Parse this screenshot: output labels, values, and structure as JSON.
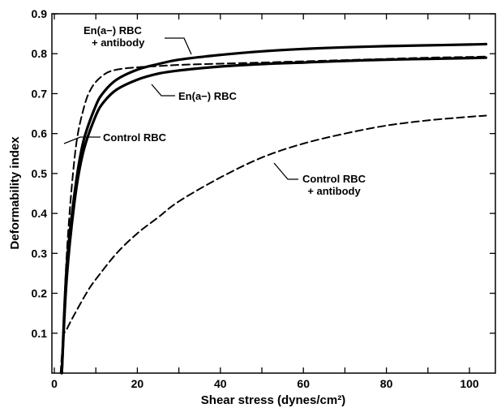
{
  "chart_data": {
    "type": "line",
    "title": "",
    "xlabel": "Shear stress (dynes/cm²)",
    "ylabel": "Deformability index",
    "xlim": [
      0,
      105
    ],
    "ylim": [
      0,
      0.9
    ],
    "xticks": [
      0,
      20,
      40,
      60,
      80,
      100
    ],
    "xtick_labels": [
      "0",
      "20",
      "40",
      "60",
      "80",
      "100"
    ],
    "yticks": [
      0.1,
      0.2,
      0.3,
      0.4,
      0.5,
      0.6,
      0.7,
      0.8,
      0.9
    ],
    "ytick_labels": [
      "0.1",
      "0.2",
      "0.3",
      "0.4",
      "0.5",
      "0.6",
      "0.7",
      "0.8",
      "0.9"
    ],
    "grid": false,
    "legend": "none (series labeled by in-plot annotations)",
    "series": [
      {
        "name": "En(a−) RBC + antibody",
        "style": "solid",
        "x": [
          1.8,
          3,
          5,
          7,
          10,
          12,
          15,
          20,
          25,
          30,
          40,
          50,
          60,
          70,
          80,
          90,
          100,
          104
        ],
        "y": [
          0.0,
          0.27,
          0.46,
          0.58,
          0.67,
          0.705,
          0.735,
          0.76,
          0.774,
          0.785,
          0.797,
          0.806,
          0.812,
          0.816,
          0.819,
          0.821,
          0.823,
          0.824
        ]
      },
      {
        "name": "En(a−) RBC",
        "style": "solid",
        "x": [
          1.8,
          3,
          5,
          7,
          10,
          12,
          15,
          20,
          25,
          30,
          40,
          50,
          60,
          70,
          80,
          90,
          100,
          104
        ],
        "y": [
          0.0,
          0.24,
          0.44,
          0.555,
          0.645,
          0.68,
          0.71,
          0.735,
          0.75,
          0.758,
          0.768,
          0.774,
          0.778,
          0.782,
          0.785,
          0.787,
          0.789,
          0.79
        ]
      },
      {
        "name": "Control RBC",
        "style": "dashed",
        "x": [
          1.8,
          3,
          5,
          7,
          9,
          12,
          15,
          20,
          25,
          30,
          40,
          50,
          60,
          70,
          80,
          90,
          100,
          104
        ],
        "y": [
          0.0,
          0.3,
          0.55,
          0.66,
          0.715,
          0.748,
          0.76,
          0.766,
          0.769,
          0.772,
          0.775,
          0.778,
          0.781,
          0.784,
          0.787,
          0.79,
          0.792,
          0.793
        ]
      },
      {
        "name": "Control RBC + antibody",
        "style": "dashed",
        "x": [
          1.5,
          2.2,
          3,
          5,
          8,
          10,
          15,
          20,
          25,
          30,
          40,
          50,
          60,
          70,
          80,
          90,
          100,
          104
        ],
        "y": [
          0.0,
          0.09,
          0.11,
          0.15,
          0.205,
          0.235,
          0.3,
          0.35,
          0.39,
          0.43,
          0.49,
          0.54,
          0.575,
          0.6,
          0.62,
          0.633,
          0.642,
          0.645
        ]
      }
    ],
    "annotations": [
      {
        "lines": [
          "En(a−) RBC",
          "+ antibody"
        ],
        "anchor": "start",
        "points_to": "En(a−) RBC + antibody"
      },
      {
        "lines": [
          "En(a−) RBC"
        ],
        "anchor": "start",
        "points_to": "En(a−) RBC"
      },
      {
        "lines": [
          "Control RBC"
        ],
        "anchor": "start",
        "points_to": "Control RBC"
      },
      {
        "lines": [
          "Control RBC",
          "+ antibody"
        ],
        "anchor": "middle",
        "points_to": "Control RBC + antibody"
      }
    ]
  }
}
